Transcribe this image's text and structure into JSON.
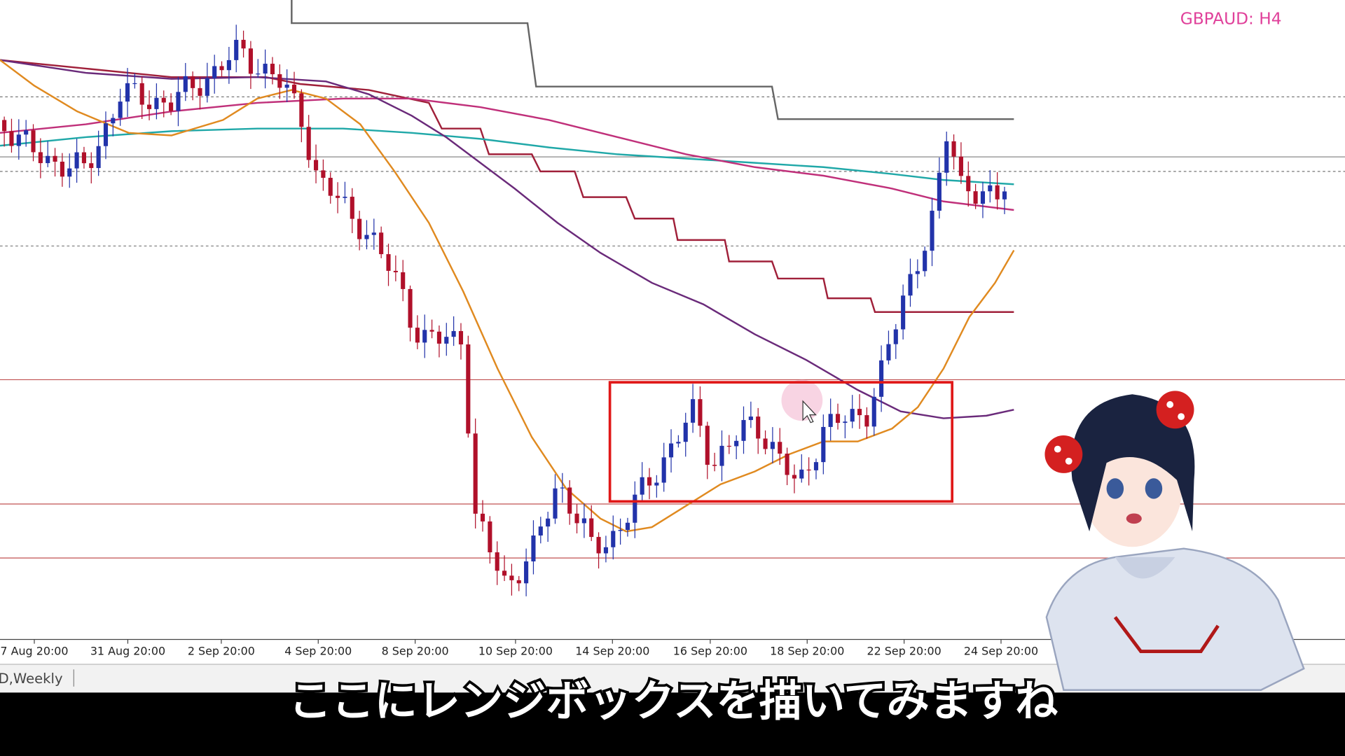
{
  "header": {
    "symbol": "GBPAUD: H4"
  },
  "time_axis": {
    "labels": [
      "7 Aug 20:00",
      "31 Aug 20:00",
      "2 Sep 20:00",
      "4 Sep 20:00",
      "8 Sep 20:00",
      "10 Sep 20:00",
      "14 Sep 20:00",
      "16 Sep 20:00",
      "18 Sep 20:00",
      "22 Sep 20:00",
      "24 Sep 20:00"
    ]
  },
  "tabs": [
    "D,Weekly"
  ],
  "subtitle": "ここにレンジボックスを描いてみますね"
}
